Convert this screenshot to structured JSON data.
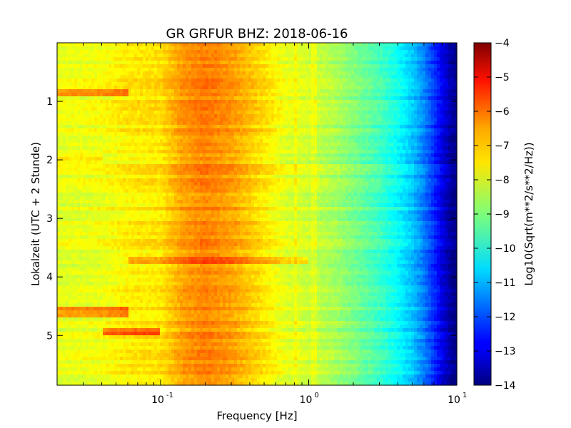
{
  "chart_data": {
    "type": "heatmap",
    "title": "GR GRFUR BHZ: 2018-06-16",
    "xlabel": "Frequency [Hz]",
    "ylabel": "Lokalzeit (UTC + 2 Stunde)",
    "x_scale": "log",
    "xlim": [
      0.02,
      10
    ],
    "x_ticks": [
      {
        "value": 0.1,
        "base": "10",
        "exp": "-1"
      },
      {
        "value": 1,
        "base": "10",
        "exp": "0"
      },
      {
        "value": 10,
        "base": "10",
        "exp": "1"
      }
    ],
    "ylim": [
      0,
      5.85
    ],
    "y_inverted": true,
    "y_ticks": [
      1,
      2,
      3,
      4,
      5
    ],
    "colorbar": {
      "label": "Log10(Sqrt(m**2/s**2/Hz))",
      "colormap": "jet",
      "min": -14,
      "max": -4,
      "ticks": [
        -4,
        -5,
        -6,
        -7,
        -8,
        -9,
        -10,
        -11,
        -12,
        -13,
        -14
      ]
    },
    "profile_x_hz": [
      0.02,
      0.04,
      0.06,
      0.1,
      0.14,
      0.2,
      0.3,
      0.5,
      0.7,
      1,
      1.5,
      2,
      3,
      4,
      5,
      6,
      7,
      8,
      9,
      10
    ],
    "profile_log10_psd": [
      -8.0,
      -7.9,
      -7.6,
      -7.5,
      -6.8,
      -6.5,
      -6.8,
      -7.5,
      -8.0,
      -8.2,
      -8.6,
      -9.0,
      -9.6,
      -10.2,
      -10.8,
      -11.5,
      -12.3,
      -13.0,
      -13.6,
      -14.0
    ],
    "features": [
      {
        "time": 0.85,
        "x_range": [
          0.02,
          0.06
        ],
        "delta": 1.2
      },
      {
        "time": 1.97,
        "x_range": [
          0.02,
          0.04
        ],
        "delta": 0.5
      },
      {
        "time": 3.73,
        "x_range": [
          0.06,
          1.0
        ],
        "delta": 0.8
      },
      {
        "time": 4.6,
        "x_range": [
          0.02,
          0.06
        ],
        "delta": 1.3
      },
      {
        "time": 4.95,
        "x_range": [
          0.04,
          0.1
        ],
        "delta": 1.5
      }
    ]
  }
}
